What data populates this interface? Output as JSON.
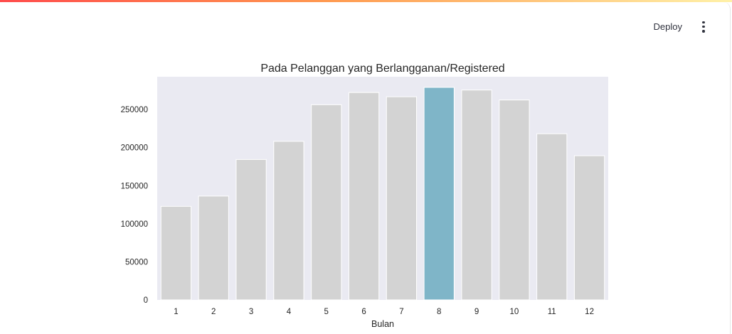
{
  "header": {
    "deploy_label": "Deploy",
    "menu_icon": "vertical-dots-icon"
  },
  "colors": {
    "plot_background": "#eaeaf2",
    "bar_default": "#d3d3d3",
    "bar_highlight": "#7fb5c8",
    "top_gradient_start": "#ff4b4b",
    "top_gradient_end": "#fff1a8"
  },
  "chart_data": {
    "type": "bar",
    "title": "Pada Pelanggan yang Berlangganan/Registered",
    "xlabel": "Bulan",
    "ylabel": "",
    "categories": [
      "1",
      "2",
      "3",
      "4",
      "5",
      "6",
      "7",
      "8",
      "9",
      "10",
      "11",
      "12"
    ],
    "values": [
      122891,
      136389,
      184476,
      208292,
      256401,
      272436,
      266791,
      279155,
      275668,
      262592,
      218228,
      189343
    ],
    "highlight_category": "8",
    "yticks": [
      0,
      50000,
      100000,
      150000,
      200000,
      250000
    ],
    "ytick_labels": [
      "0",
      "50000",
      "100000",
      "150000",
      "200000",
      "250000"
    ],
    "ylim": [
      0,
      293113
    ],
    "grid": false,
    "legend": "none"
  }
}
